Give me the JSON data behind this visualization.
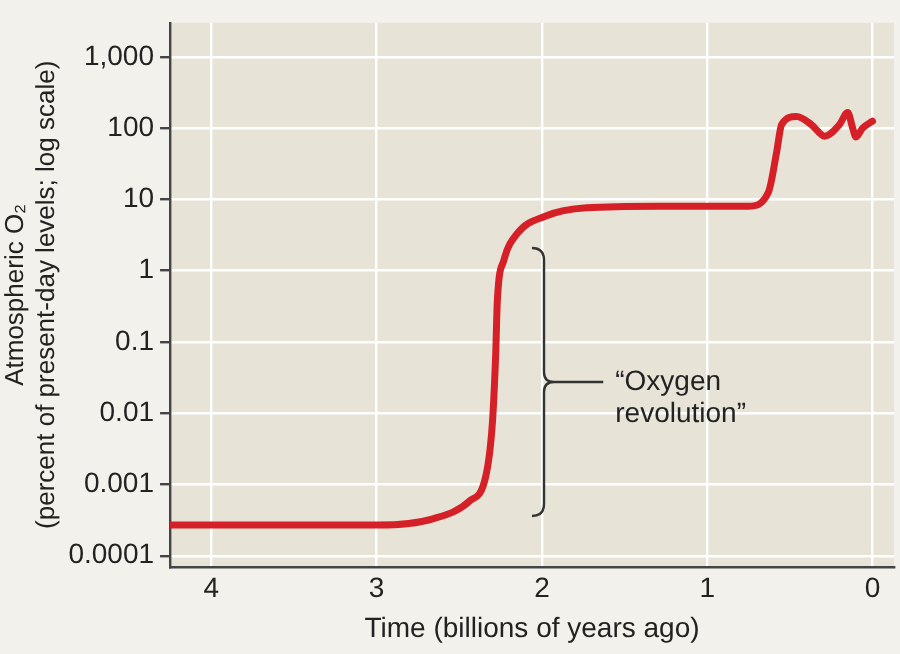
{
  "chart_data": {
    "type": "line",
    "xlabel": "Time (billions of years ago)",
    "ylabel": "Atmospheric O₂\n(percent of present-day levels; log scale)",
    "x": [
      4.25,
      2.99,
      2.66,
      2.44,
      2.34,
      2.3,
      2.28,
      2.27,
      2.23,
      2.15,
      1.98,
      1.73,
      1.3,
      0.75,
      0.63,
      0.58,
      0.55,
      0.46,
      0.37,
      0.29,
      0.2,
      0.15,
      0.12,
      0.1,
      0.06,
      0.0
    ],
    "series": [
      {
        "color": "#d62027",
        "values": [
          0.00027,
          0.00027,
          0.00033,
          0.00058,
          0.0013,
          0.0072,
          0.065,
          0.37,
          1.4,
          3.3,
          5.8,
          7.6,
          8,
          8,
          12.6,
          46,
          112,
          145,
          112,
          77,
          112,
          166,
          100,
          75,
          100,
          125
        ]
      }
    ],
    "xlim": [
      4.25,
      -0.13
    ],
    "xticks": [
      4,
      3,
      2,
      1,
      0
    ],
    "ylim": [
      7e-05,
      3000
    ],
    "yticks": [
      0.0001,
      0.001,
      0.01,
      0.1,
      1,
      10,
      100,
      {
        "value": 1000,
        "label": "1,000"
      }
    ],
    "log": "y",
    "grid": true,
    "marker": "none",
    "line_style": "solid",
    "annotations": [
      "“Oxygen\nrevolution”"
    ]
  }
}
